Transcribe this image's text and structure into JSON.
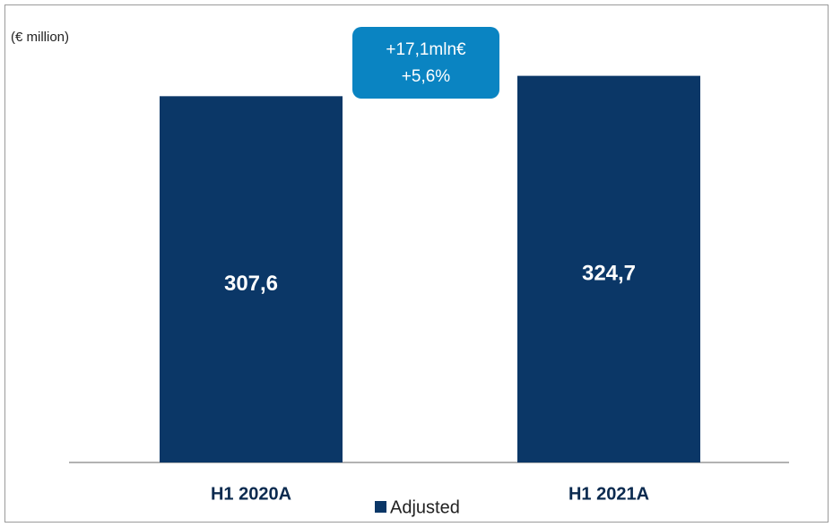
{
  "chart_data": {
    "type": "bar",
    "subtitle": "(€ million)",
    "categories": [
      "H1 2020A",
      "H1 2021A"
    ],
    "series": [
      {
        "name": "Adjusted",
        "color": "#0b3767",
        "values": [
          307.6,
          324.7
        ],
        "value_labels": [
          "307,6",
          "324,7"
        ]
      }
    ],
    "annotation": {
      "lines": [
        "+17,1mln€",
        "+5,6%"
      ],
      "color": "#0a84c2"
    },
    "ylim": [
      0,
      350
    ],
    "legend": "bottom"
  }
}
